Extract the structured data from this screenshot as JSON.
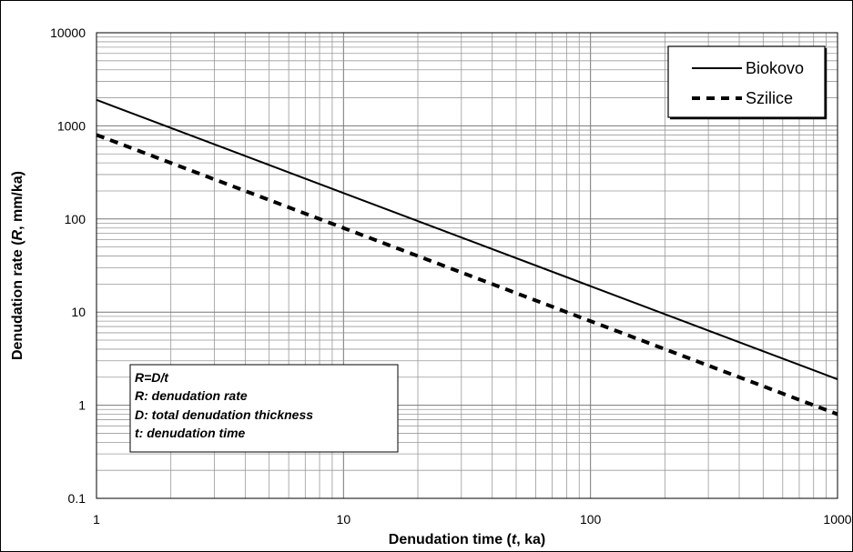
{
  "chart_data": {
    "type": "line",
    "x_scale": "log",
    "y_scale": "log",
    "xlim": [
      1,
      1000
    ],
    "ylim": [
      0.1,
      10000
    ],
    "grid": true,
    "legend_position": "top-right",
    "xlabel": {
      "pre": "Denudation time (",
      "var": "t",
      "post": ", ka)"
    },
    "ylabel": {
      "pre": "Denudation rate (",
      "var": "R",
      "post": ", mm/ka)"
    },
    "x_ticks": [
      "1",
      "10",
      "100",
      "1000"
    ],
    "y_ticks": [
      "0.1",
      "1",
      "10",
      "100",
      "1000",
      "10000"
    ],
    "series": [
      {
        "name": "Biokovo",
        "style": "solid",
        "x": [
          1,
          10,
          100,
          1000
        ],
        "y": [
          1900,
          190,
          19,
          1.9
        ]
      },
      {
        "name": "Szilice",
        "style": "dashed",
        "x": [
          1,
          10,
          100,
          1000
        ],
        "y": [
          800,
          80,
          8,
          0.8
        ]
      }
    ],
    "annotation": [
      "R=D/t",
      "R: denudation rate",
      "D: total denudation thickness",
      "t: denudation time"
    ]
  }
}
